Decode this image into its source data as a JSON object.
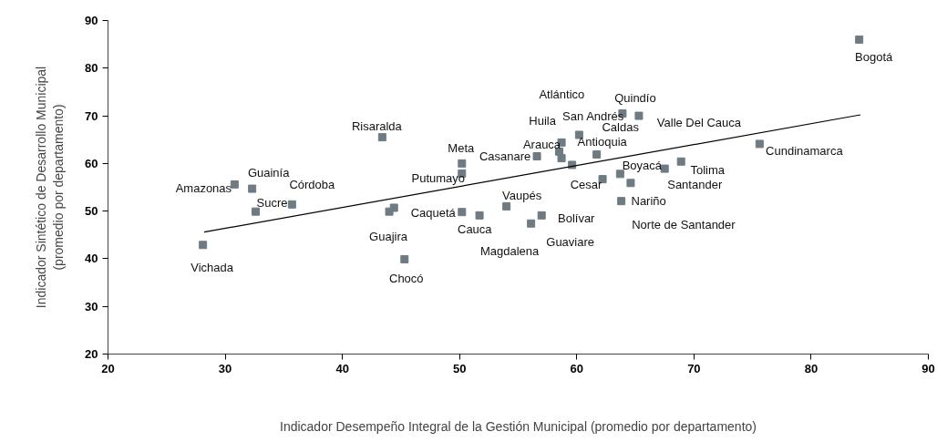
{
  "chart_data": {
    "type": "scatter",
    "xlabel": "Indicador Desempeño Integral de la Gestión Municipal (promedio por departamento)",
    "ylabel": "Indicador Sintético de Desarrollo Municipal\n(promedio por departamento)",
    "xlim": [
      20,
      90
    ],
    "xticks": [
      20,
      30,
      40,
      50,
      60,
      70,
      80,
      90
    ],
    "ylim": [
      20,
      90
    ],
    "yticks": [
      20,
      30,
      40,
      50,
      60,
      70,
      80,
      90
    ],
    "grid": false,
    "marker": "square",
    "series": [
      {
        "type": "scatter",
        "color": "#6f7b83",
        "x": [
          30.8,
          32.3,
          32.6,
          35.7,
          28.1,
          43.4,
          44.0,
          44.4,
          45.3,
          50.2,
          50.2,
          50.2,
          51.7,
          54.0,
          56.1,
          57.0,
          56.6,
          58.7,
          58.5,
          58.7,
          60.2,
          59.6,
          61.7,
          63.9,
          65.3,
          62.2,
          63.7,
          64.6,
          63.8,
          67.5,
          68.9,
          75.6,
          84.1
        ],
        "values": [
          55.6,
          54.7,
          49.9,
          51.4,
          42.9,
          65.5,
          49.9,
          50.7,
          39.9,
          60.0,
          57.9,
          49.8,
          49.1,
          51.0,
          47.4,
          49.1,
          61.5,
          64.4,
          62.5,
          61.1,
          66.0,
          59.7,
          61.9,
          70.5,
          70.0,
          56.7,
          57.8,
          55.9,
          52.1,
          58.9,
          60.4,
          64.1,
          86.0
        ]
      },
      {
        "type": "line",
        "color": "#000000",
        "marker": "none",
        "line_style": "solid",
        "x": [
          28.2,
          84.2
        ],
        "values": [
          45.6,
          70.2
        ]
      }
    ],
    "annotations": [
      {
        "text": "Amazonas",
        "x": 30.8,
        "y": 55.6
      },
      {
        "text": "Guainía",
        "x": 32.3,
        "y": 54.7
      },
      {
        "text": "Sucre",
        "x": 32.6,
        "y": 49.9
      },
      {
        "text": "Córdoba",
        "x": 35.7,
        "y": 51.4
      },
      {
        "text": "Vichada",
        "x": 28.1,
        "y": 42.9
      },
      {
        "text": "Risaralda",
        "x": 43.4,
        "y": 65.5
      },
      {
        "text": "Guajira",
        "x": 44.0,
        "y": 49.9
      },
      {
        "text": "Caquetá",
        "x": 44.4,
        "y": 50.7
      },
      {
        "text": "Chocó",
        "x": 45.3,
        "y": 39.9
      },
      {
        "text": "Meta",
        "x": 50.2,
        "y": 60.0
      },
      {
        "text": "Putumayo",
        "x": 50.2,
        "y": 57.9
      },
      {
        "text": "Cauca",
        "x": 50.2,
        "y": 49.8
      },
      {
        "text": "Magdalena",
        "x": 51.7,
        "y": 49.1
      },
      {
        "text": "Vaupés",
        "x": 54.0,
        "y": 51.0
      },
      {
        "text": "Guaviare",
        "x": 56.1,
        "y": 47.4
      },
      {
        "text": "Bolívar",
        "x": 57.0,
        "y": 49.1
      },
      {
        "text": "Casanare",
        "x": 56.6,
        "y": 61.5
      },
      {
        "text": "Huila",
        "x": 58.7,
        "y": 61.1
      },
      {
        "text": "Arauca",
        "x": 58.5,
        "y": 62.5
      },
      {
        "text": "Caldas",
        "x": 61.7,
        "y": 61.9
      },
      {
        "text": "Atlántico",
        "x": 60.2,
        "y": 66.0
      },
      {
        "text": "San Andrés",
        "x": 58.7,
        "y": 64.4
      },
      {
        "text": "Antioquia",
        "x": 59.6,
        "y": 59.7
      },
      {
        "text": "Quindío",
        "x": 63.9,
        "y": 70.5
      },
      {
        "text": "Valle Del Cauca",
        "x": 65.3,
        "y": 70.0
      },
      {
        "text": "Cesar",
        "x": 62.2,
        "y": 56.7
      },
      {
        "text": "Boyacá",
        "x": 63.7,
        "y": 57.8
      },
      {
        "text": "Norte de Santander",
        "x": 64.6,
        "y": 55.9
      },
      {
        "text": "Nariño",
        "x": 63.8,
        "y": 52.1
      },
      {
        "text": "Santander",
        "x": 67.5,
        "y": 58.9
      },
      {
        "text": "Tolima",
        "x": 68.9,
        "y": 60.4
      },
      {
        "text": "Cundinamarca",
        "x": 75.6,
        "y": 64.1
      },
      {
        "text": "Bogotá",
        "x": 84.1,
        "y": 86.0
      }
    ]
  }
}
